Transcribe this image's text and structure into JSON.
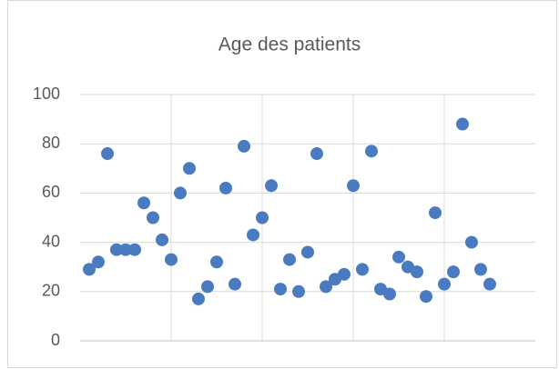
{
  "chart_data": {
    "type": "scatter",
    "title": "Age des patients",
    "series": [
      {
        "color": "#4a7bc0",
        "x": [
          1,
          2,
          3,
          4,
          5,
          6,
          7,
          8,
          9,
          10,
          11,
          12,
          13,
          14,
          15,
          16,
          17,
          18,
          19,
          20,
          21,
          22,
          23,
          24,
          25,
          26,
          27,
          28,
          29,
          30,
          31,
          32,
          33,
          34,
          35,
          36,
          37,
          38,
          39,
          40,
          41,
          42,
          43,
          44,
          45
        ],
        "values": [
          29,
          32,
          76,
          37,
          37,
          37,
          56,
          50,
          41,
          33,
          60,
          70,
          17,
          22,
          32,
          62,
          23,
          79,
          43,
          50,
          63,
          21,
          33,
          20,
          36,
          76,
          22,
          25,
          27,
          63,
          29,
          77,
          21,
          19,
          34,
          30,
          28,
          18,
          52,
          23,
          28,
          88,
          40,
          29,
          23
        ]
      }
    ],
    "xlim": [
      0,
      50
    ],
    "xticks": [
      10,
      20,
      30,
      40
    ],
    "ylim": [
      0,
      100
    ],
    "yticks": [
      0,
      20,
      40,
      60,
      80,
      100
    ],
    "grid": true
  }
}
